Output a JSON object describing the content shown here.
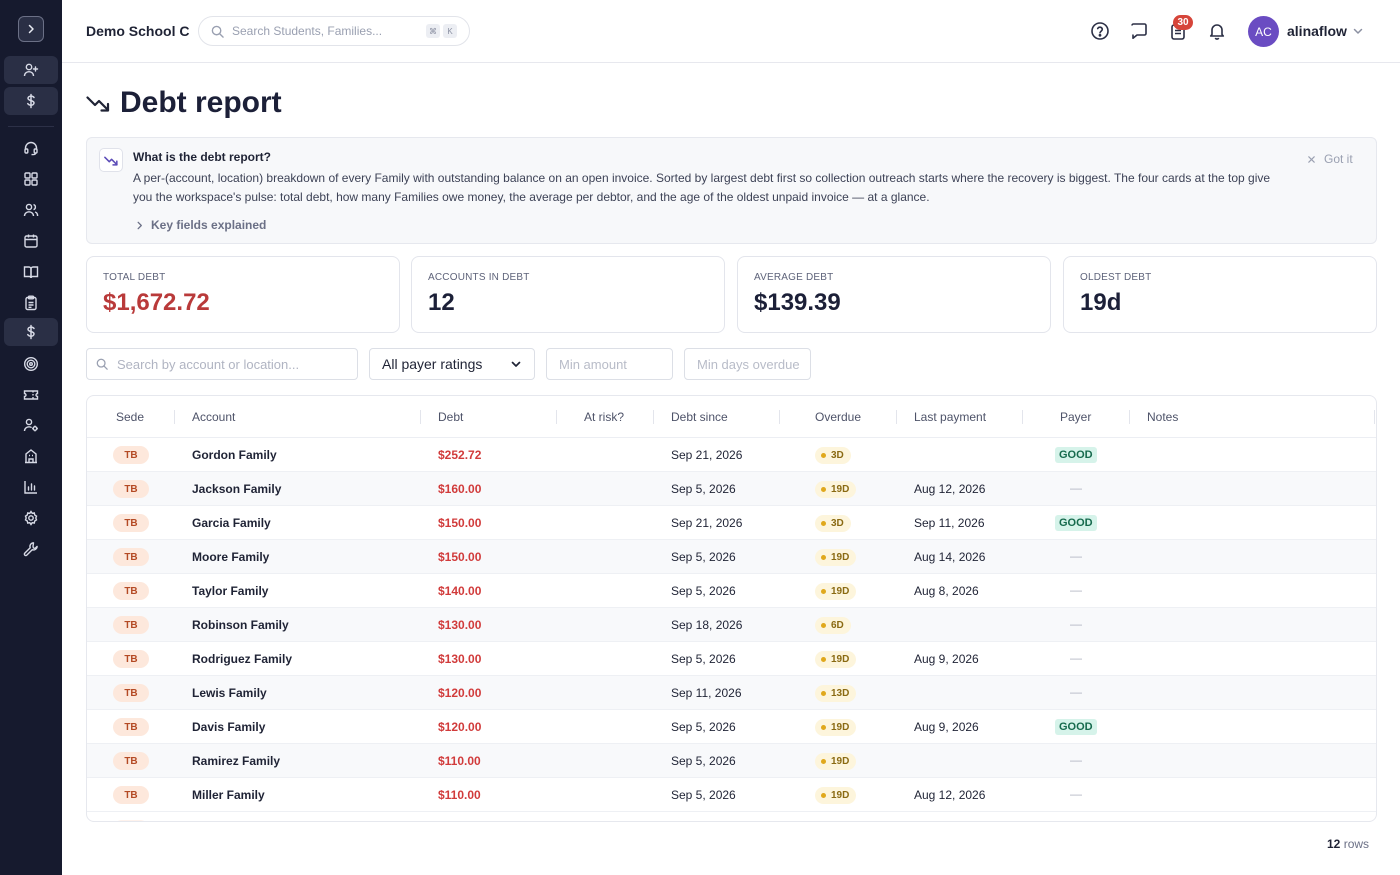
{
  "app": {
    "school_name": "Demo School C",
    "search_placeholder": "Search Students, Families...",
    "search_shortcut": [
      "⌘",
      "K"
    ],
    "notifications_count": "30",
    "user": {
      "initials": "AC",
      "name": "alinaflow"
    }
  },
  "sidebar": {
    "items": [
      {
        "icon": "user-plus-icon"
      },
      {
        "icon": "dollar-icon"
      },
      {
        "icon": "headset-icon"
      },
      {
        "icon": "dashboard-icon"
      },
      {
        "icon": "users-icon"
      },
      {
        "icon": "calendar-icon"
      },
      {
        "icon": "book-icon"
      },
      {
        "icon": "clipboard-icon"
      },
      {
        "icon": "dollar-icon",
        "active": true
      },
      {
        "icon": "target-icon"
      },
      {
        "icon": "ticket-icon"
      },
      {
        "icon": "user-settings-icon"
      },
      {
        "icon": "building-icon"
      },
      {
        "icon": "bar-chart-icon"
      },
      {
        "icon": "gear-icon"
      },
      {
        "icon": "wrench-icon"
      }
    ]
  },
  "page": {
    "title": "Debt report",
    "info": {
      "title": "What is the debt report?",
      "body": "A per-(account, location) breakdown of every Family with outstanding balance on an open invoice. Sorted by largest debt first so collection outreach starts where the recovery is biggest. The four cards at the top give you the workspace's pulse: total debt, how many Families owe money, the average per debtor, and the age of the oldest unpaid invoice — at a glance.",
      "expand_label": "Key fields explained",
      "dismiss_label": "Got it"
    },
    "cards": [
      {
        "label": "TOTAL DEBT",
        "value": "$1,672.72"
      },
      {
        "label": "ACCOUNTS IN DEBT",
        "value": "12"
      },
      {
        "label": "AVERAGE DEBT",
        "value": "$139.39"
      },
      {
        "label": "OLDEST DEBT",
        "value": "19d"
      }
    ],
    "filters": {
      "search_placeholder": "Search by account or location...",
      "payer_rating": "All payer ratings",
      "min_amount_placeholder": "Min amount",
      "min_days_placeholder": "Min days overdue"
    }
  },
  "table": {
    "columns": [
      "Sede",
      "Account",
      "Debt",
      "At risk?",
      "Debt since",
      "Overdue",
      "Last payment",
      "Payer",
      "Notes"
    ],
    "rows": [
      {
        "sede": "TB",
        "account": "Gordon Family",
        "debt": "$252.72",
        "since": "Sep 21, 2026",
        "overdue": "3D",
        "last_payment": "",
        "payer": "GOOD"
      },
      {
        "sede": "TB",
        "account": "Jackson Family",
        "debt": "$160.00",
        "since": "Sep 5, 2026",
        "overdue": "19D",
        "last_payment": "Aug 12, 2026",
        "payer": "—"
      },
      {
        "sede": "TB",
        "account": "Garcia Family",
        "debt": "$150.00",
        "since": "Sep 21, 2026",
        "overdue": "3D",
        "last_payment": "Sep 11, 2026",
        "payer": "GOOD"
      },
      {
        "sede": "TB",
        "account": "Moore Family",
        "debt": "$150.00",
        "since": "Sep 5, 2026",
        "overdue": "19D",
        "last_payment": "Aug 14, 2026",
        "payer": "—"
      },
      {
        "sede": "TB",
        "account": "Taylor Family",
        "debt": "$140.00",
        "since": "Sep 5, 2026",
        "overdue": "19D",
        "last_payment": "Aug 8, 2026",
        "payer": "—"
      },
      {
        "sede": "TB",
        "account": "Robinson Family",
        "debt": "$130.00",
        "since": "Sep 18, 2026",
        "overdue": "6D",
        "last_payment": "",
        "payer": "—"
      },
      {
        "sede": "TB",
        "account": "Rodriguez Family",
        "debt": "$130.00",
        "since": "Sep 5, 2026",
        "overdue": "19D",
        "last_payment": "Aug 9, 2026",
        "payer": "—"
      },
      {
        "sede": "TB",
        "account": "Lewis Family",
        "debt": "$120.00",
        "since": "Sep 11, 2026",
        "overdue": "13D",
        "last_payment": "",
        "payer": "—"
      },
      {
        "sede": "TB",
        "account": "Davis Family",
        "debt": "$120.00",
        "since": "Sep 5, 2026",
        "overdue": "19D",
        "last_payment": "Aug 9, 2026",
        "payer": "GOOD"
      },
      {
        "sede": "TB",
        "account": "Ramirez Family",
        "debt": "$110.00",
        "since": "Sep 5, 2026",
        "overdue": "19D",
        "last_payment": "",
        "payer": "—"
      },
      {
        "sede": "TB",
        "account": "Miller Family",
        "debt": "$110.00",
        "since": "Sep 5, 2026",
        "overdue": "19D",
        "last_payment": "Aug 12, 2026",
        "payer": "—"
      }
    ],
    "row_count": "12",
    "row_count_suffix": "rows"
  },
  "colors": {
    "sidebar_bg": "#161a2e",
    "debt_red": "#d13b3b",
    "total_debt_red": "#b93a3a",
    "good_badge_bg": "#d6f3ea",
    "overdue_badge_bg": "#fdf5dc",
    "sede_badge_bg": "#fde8dc",
    "avatar": "#6a4cc2",
    "notification_badge": "#d6453a"
  }
}
